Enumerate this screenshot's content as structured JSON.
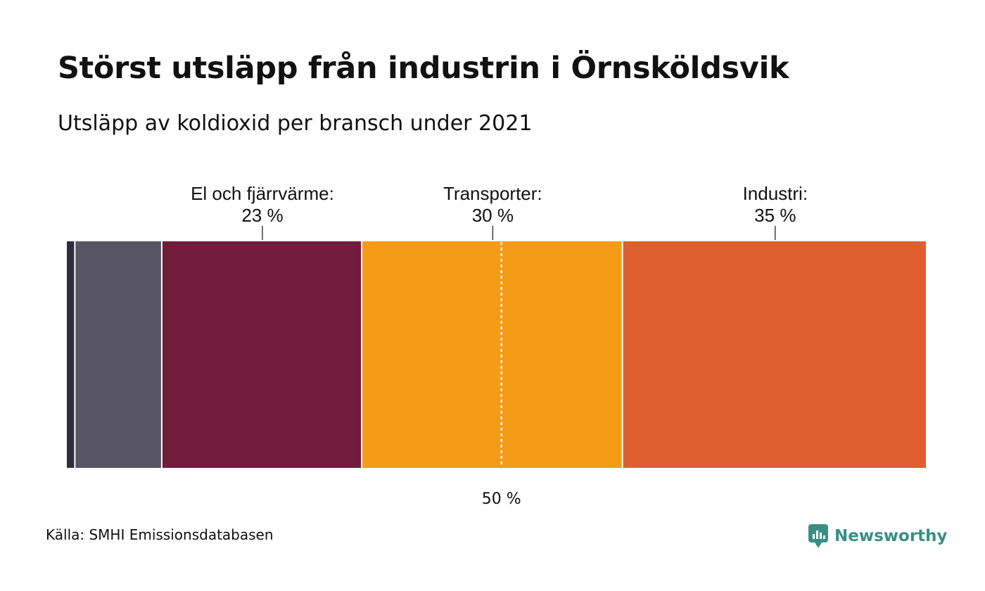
{
  "title": "Störst utsläpp från industrin i Örnsköldsvik",
  "subtitle": "Utsläpp av koldioxid per bransch under 2021",
  "source": "Källa: SMHI Emissionsdatabasen",
  "brand": {
    "name": "Newsworthy",
    "icon": "newsworthy-logo-icon",
    "color": "#3a8f85"
  },
  "chart_data": {
    "type": "bar",
    "stacked": "horizontal-100-percent",
    "unit": "%",
    "segments": [
      {
        "value": 1,
        "color": "#2e2d3d",
        "label": "",
        "value_label": ""
      },
      {
        "value": 10,
        "color": "#575563",
        "label": "",
        "value_label": ""
      },
      {
        "value": 23,
        "color": "#711c3b",
        "label": "El och fjärrvärme:",
        "value_label": "23 %"
      },
      {
        "value": 30,
        "color": "#f59c17",
        "label": "Transporter:",
        "value_label": "30 %"
      },
      {
        "value": 35,
        "color": "#e05e2f",
        "label": "Industri:",
        "value_label": "35 %"
      }
    ],
    "reference_line": {
      "value": 50,
      "label": "50 %",
      "style": "dotted",
      "color": "#ffffff"
    }
  }
}
